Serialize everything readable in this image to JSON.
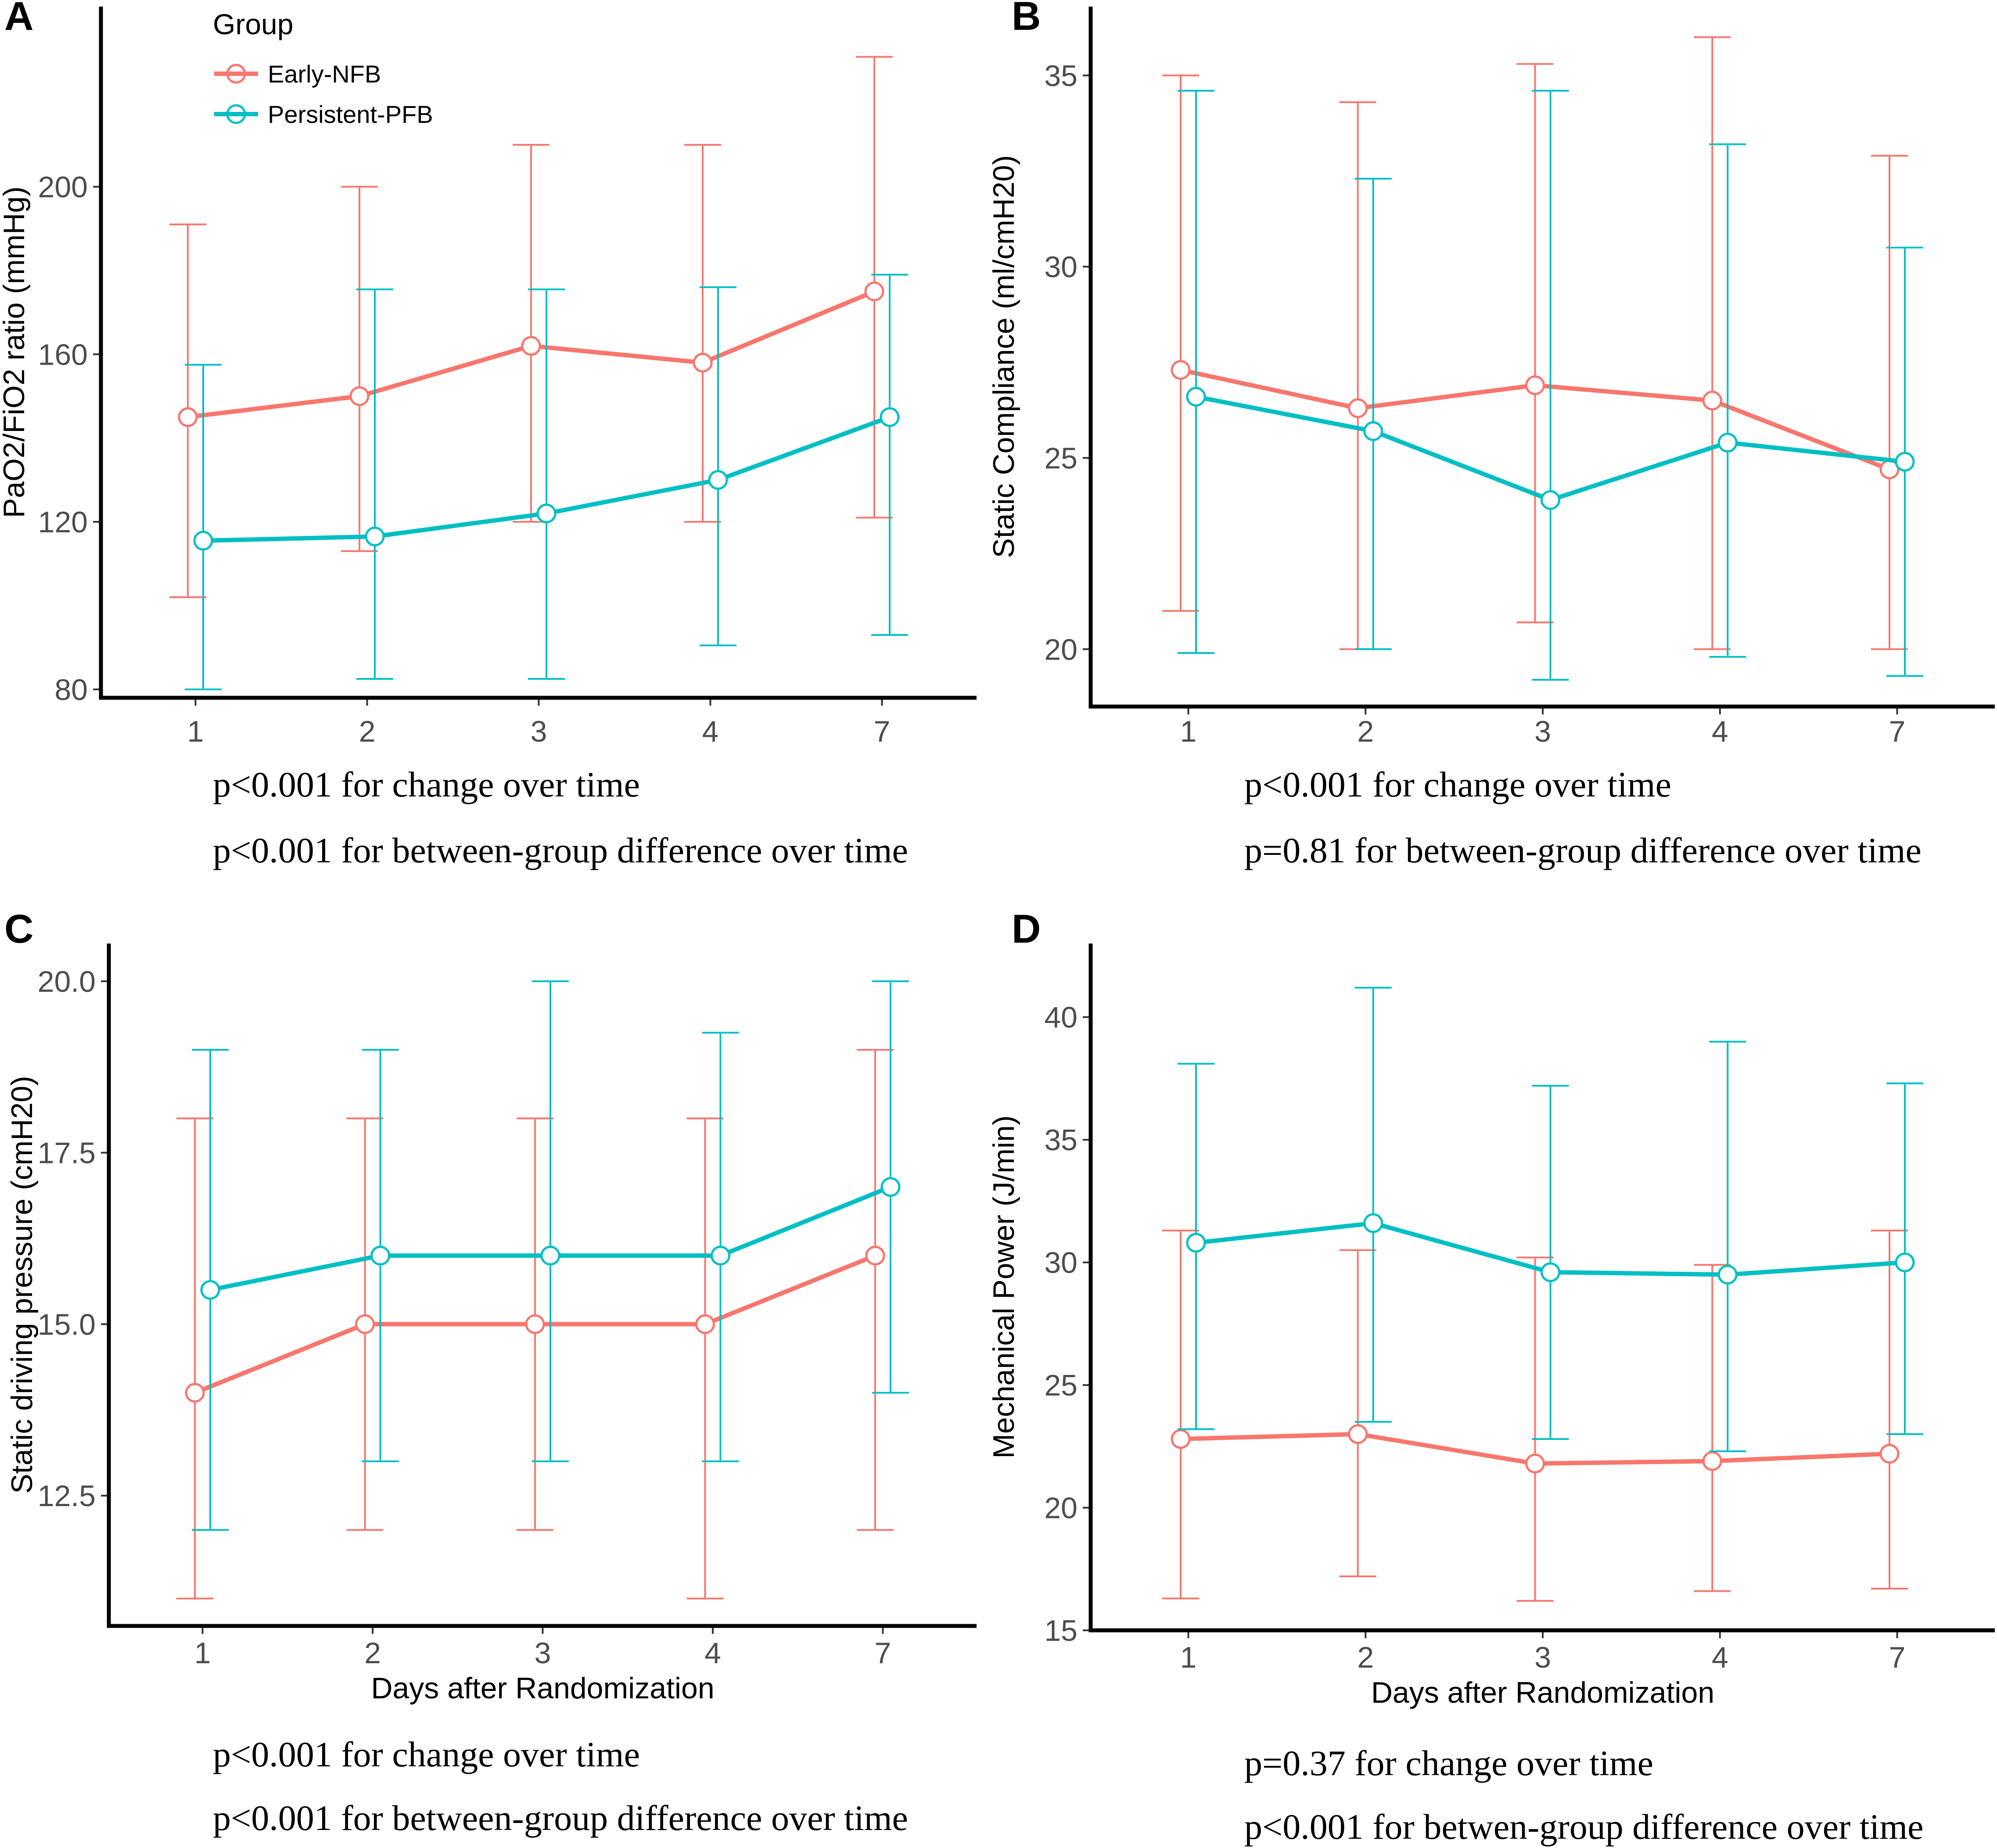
{
  "legend": {
    "title": "Group",
    "entries": [
      {
        "label": "Early-NFB",
        "color": "#F8766D"
      },
      {
        "label": "Persistent-PFB",
        "color": "#00BFC4"
      }
    ]
  },
  "chart_data": [
    {
      "panel": "A",
      "type": "line",
      "ylabel": "PaO2/FiO2 ratio (mmHg)",
      "xlabel": "",
      "categories": [
        "1",
        "2",
        "3",
        "4",
        "7"
      ],
      "ylim": [
        78,
        243
      ],
      "yticks": [
        80,
        120,
        160,
        200
      ],
      "yticklabels": [
        "80",
        "120",
        "160",
        "200"
      ],
      "series": [
        {
          "name": "Early-NFB",
          "color": "#F8766D",
          "values": [
            145,
            150,
            162,
            158,
            175
          ],
          "lower": [
            102,
            113,
            120,
            120,
            121
          ],
          "upper": [
            191,
            200,
            210,
            210,
            231
          ]
        },
        {
          "name": "Persistent-PFB",
          "color": "#00BFC4",
          "values": [
            115.5,
            116.5,
            122,
            130,
            145
          ],
          "lower": [
            80,
            82.5,
            82.5,
            90.5,
            93
          ],
          "upper": [
            157.5,
            175.5,
            175.5,
            176,
            179
          ]
        }
      ],
      "annotations": [
        "p<0.001 for change over time",
        "p<0.001 for between-group difference over time"
      ]
    },
    {
      "panel": "B",
      "type": "line",
      "ylabel": "Static Compliance (ml/cmH20)",
      "xlabel": "",
      "categories": [
        "1",
        "2",
        "3",
        "4",
        "7"
      ],
      "ylim": [
        18.5,
        36.8
      ],
      "yticks": [
        20,
        25,
        30,
        35
      ],
      "yticklabels": [
        "20",
        "25",
        "30",
        "35"
      ],
      "series": [
        {
          "name": "Early-NFB",
          "color": "#F8766D",
          "values": [
            27.3,
            26.3,
            26.9,
            26.5,
            24.7
          ],
          "lower": [
            21,
            20,
            20.7,
            20,
            20
          ],
          "upper": [
            35,
            34.3,
            35.3,
            36,
            32.9
          ]
        },
        {
          "name": "Persistent-PFB",
          "color": "#00BFC4",
          "values": [
            26.6,
            25.7,
            23.9,
            25.4,
            24.9
          ],
          "lower": [
            19.9,
            20,
            19.2,
            19.8,
            19.3
          ],
          "upper": [
            34.6,
            32.3,
            34.6,
            33.2,
            30.5
          ]
        }
      ],
      "annotations": [
        "p<0.001 for change over time",
        "p=0.81 for between-group difference over time"
      ]
    },
    {
      "panel": "C",
      "type": "line",
      "ylabel": "Static driving pressure (cmH20)",
      "xlabel": "Days after Randomization",
      "categories": [
        "1",
        "2",
        "3",
        "4",
        "7"
      ],
      "ylim": [
        10.6,
        20.55
      ],
      "yticks": [
        12.5,
        15,
        17.5,
        20
      ],
      "yticklabels": [
        "12.5",
        "15.0",
        "17.5",
        "20.0"
      ],
      "series": [
        {
          "name": "Early-NFB",
          "color": "#F8766D",
          "values": [
            14,
            15,
            15,
            15,
            16
          ],
          "lower": [
            11,
            12,
            12,
            11,
            12
          ],
          "upper": [
            18,
            18,
            18,
            18,
            19
          ]
        },
        {
          "name": "Persistent-PFB",
          "color": "#00BFC4",
          "values": [
            15.5,
            16,
            16,
            16,
            17
          ],
          "lower": [
            12,
            13,
            13,
            13,
            14
          ],
          "upper": [
            19,
            19,
            20,
            19.25,
            20
          ]
        }
      ],
      "annotations": [
        "p<0.001 for change over time",
        "p<0.001 for between-group difference over time"
      ]
    },
    {
      "panel": "D",
      "type": "line",
      "ylabel": "Mechanical Power (J/min)",
      "xlabel": "Days after Randomization",
      "categories": [
        "1",
        "2",
        "3",
        "4",
        "7"
      ],
      "ylim": [
        15,
        43
      ],
      "yticks": [
        15,
        20,
        25,
        30,
        35,
        40
      ],
      "yticklabels": [
        "15",
        "20",
        "25",
        "30",
        "35",
        "40"
      ],
      "series": [
        {
          "name": "Early-NFB",
          "color": "#F8766D",
          "values": [
            22.8,
            23,
            21.8,
            21.9,
            22.2
          ],
          "lower": [
            16.3,
            17.2,
            16.2,
            16.6,
            16.7
          ],
          "upper": [
            31.3,
            30.5,
            30.2,
            29.9,
            31.3
          ]
        },
        {
          "name": "Persistent-PFB",
          "color": "#00BFC4",
          "values": [
            30.8,
            31.6,
            29.6,
            29.5,
            30
          ],
          "lower": [
            23.2,
            23.5,
            22.8,
            22.3,
            23
          ],
          "upper": [
            38.1,
            41.2,
            37.2,
            39,
            37.3
          ]
        }
      ],
      "annotations": [
        "p=0.37 for change over time",
        "p<0.001 for betwen-group difference over time"
      ]
    }
  ]
}
